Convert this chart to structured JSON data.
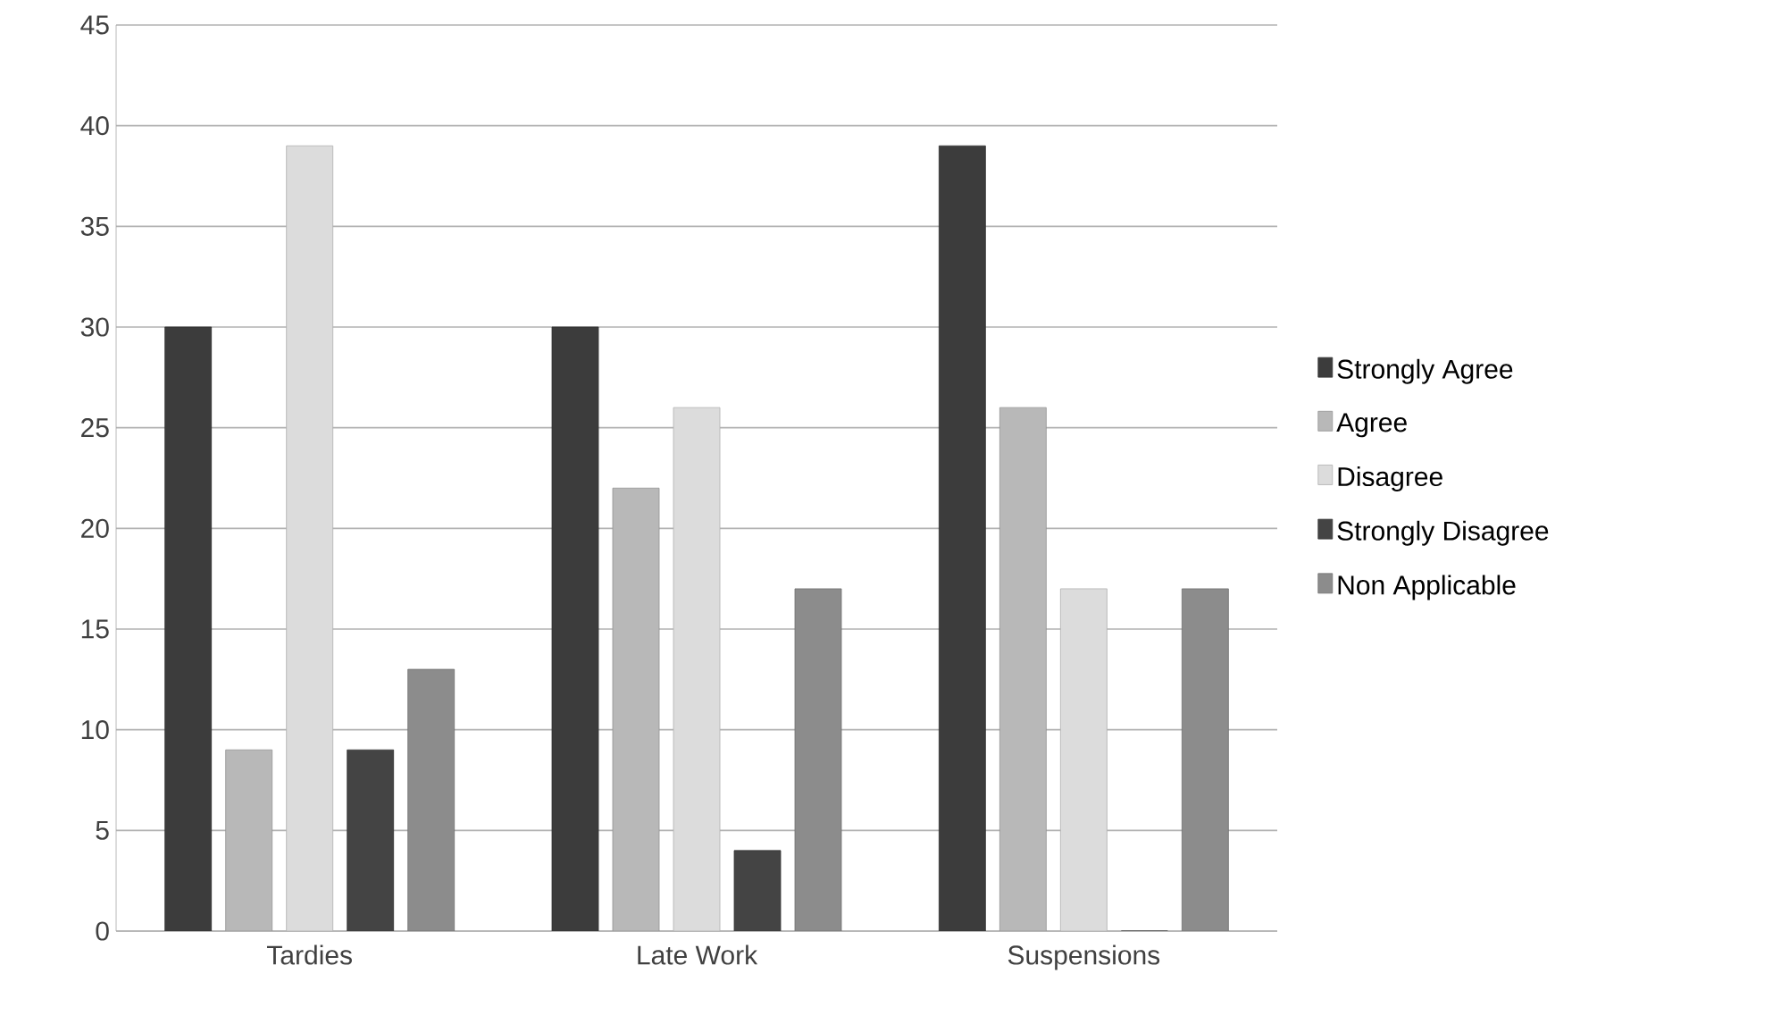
{
  "chart_data": {
    "type": "bar",
    "categories": [
      "Tardies",
      "Late Work",
      "Suspensions"
    ],
    "series": [
      {
        "name": "Strongly Agree",
        "color": "#3c3c3c",
        "values": [
          30,
          30,
          39
        ]
      },
      {
        "name": "Agree",
        "color": "#b8b8b8",
        "values": [
          9,
          22,
          26
        ]
      },
      {
        "name": "Disagree",
        "color": "#dcdcdc",
        "values": [
          39,
          26,
          17
        ]
      },
      {
        "name": "Strongly Disagree",
        "color": "#444444",
        "values": [
          9,
          4,
          0
        ]
      },
      {
        "name": "Non Applicable",
        "color": "#8c8c8c",
        "values": [
          13,
          17,
          17
        ]
      }
    ],
    "ylim": [
      0,
      45
    ],
    "yticks": [
      0,
      5,
      10,
      15,
      20,
      25,
      30,
      35,
      40,
      45
    ],
    "grid": "y",
    "legend": "right"
  }
}
